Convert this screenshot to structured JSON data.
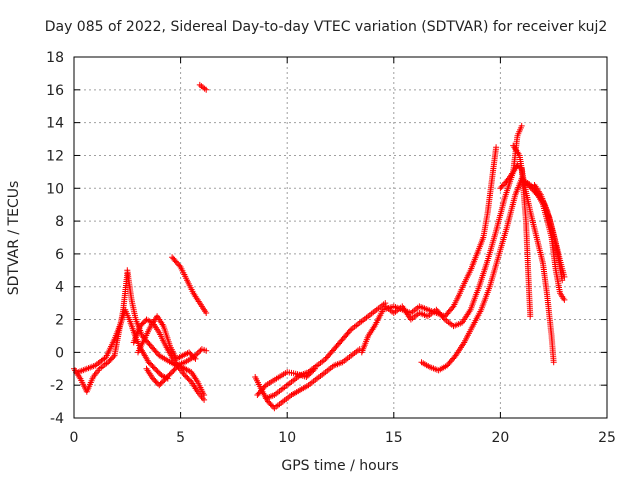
{
  "chart_data": {
    "type": "scatter",
    "title": "Day 085 of 2022, Sidereal Day-to-day VTEC variation (SDTVAR) for receiver kuj2",
    "xlabel": "GPS time / hours",
    "ylabel": "SDTVAR / TECUs",
    "xlim": [
      0,
      25
    ],
    "ylim": [
      -4,
      18
    ],
    "xticks": [
      0,
      5,
      10,
      15,
      20,
      25
    ],
    "yticks": [
      -4,
      -2,
      0,
      2,
      4,
      6,
      8,
      10,
      12,
      14,
      16,
      18
    ],
    "grid": true,
    "marker": "+",
    "series": [
      {
        "name": "SDTVAR",
        "color": "#ff0000",
        "tracks": [
          [
            [
              0.0,
              -1.0
            ],
            [
              0.3,
              -1.6
            ],
            [
              0.6,
              -2.4
            ],
            [
              0.9,
              -1.5
            ],
            [
              1.2,
              -1.0
            ],
            [
              1.6,
              -0.6
            ],
            [
              1.9,
              -0.2
            ],
            [
              2.1,
              1.2
            ],
            [
              2.3,
              2.5
            ],
            [
              2.5,
              4.8
            ]
          ],
          [
            [
              0.2,
              -1.2
            ],
            [
              0.6,
              -1.0
            ],
            [
              1.0,
              -0.8
            ],
            [
              1.5,
              -0.3
            ],
            [
              1.9,
              0.8
            ],
            [
              2.2,
              1.8
            ],
            [
              2.4,
              2.6
            ],
            [
              2.6,
              2.0
            ],
            [
              2.9,
              0.9
            ],
            [
              3.1,
              0.3
            ],
            [
              3.5,
              -0.6
            ],
            [
              3.8,
              -1.0
            ],
            [
              4.1,
              -1.4
            ],
            [
              4.4,
              -1.6
            ]
          ],
          [
            [
              2.5,
              5.0
            ],
            [
              2.7,
              3.2
            ],
            [
              2.9,
              2.0
            ],
            [
              3.2,
              1.0
            ],
            [
              3.6,
              0.4
            ],
            [
              4.0,
              -0.2
            ],
            [
              4.4,
              -0.5
            ],
            [
              4.8,
              -0.8
            ],
            [
              5.2,
              -0.6
            ],
            [
              5.6,
              -0.3
            ],
            [
              6.0,
              0.2
            ],
            [
              6.2,
              0.1
            ]
          ],
          [
            [
              2.8,
              0.6
            ],
            [
              3.1,
              1.6
            ],
            [
              3.4,
              2.0
            ],
            [
              3.7,
              1.8
            ],
            [
              4.0,
              1.2
            ],
            [
              4.3,
              0.4
            ],
            [
              4.6,
              -0.3
            ],
            [
              4.9,
              -0.9
            ],
            [
              5.2,
              -1.4
            ],
            [
              5.5,
              -1.8
            ],
            [
              5.8,
              -2.4
            ],
            [
              6.1,
              -2.9
            ]
          ],
          [
            [
              3.4,
              -1.0
            ],
            [
              3.7,
              -1.6
            ],
            [
              4.0,
              -2.0
            ],
            [
              4.3,
              -1.6
            ],
            [
              4.6,
              -1.2
            ],
            [
              4.9,
              -0.8
            ],
            [
              5.2,
              -1.0
            ],
            [
              5.5,
              -1.2
            ],
            [
              5.8,
              -1.8
            ],
            [
              6.1,
              -2.6
            ]
          ],
          [
            [
              3.0,
              0.0
            ],
            [
              3.3,
              0.8
            ],
            [
              3.6,
              1.6
            ],
            [
              3.9,
              2.2
            ],
            [
              4.2,
              1.6
            ],
            [
              4.5,
              0.4
            ],
            [
              4.8,
              -0.4
            ],
            [
              5.1,
              -0.2
            ],
            [
              5.4,
              0.0
            ],
            [
              5.7,
              -0.4
            ]
          ],
          [
            [
              4.6,
              5.8
            ],
            [
              5.0,
              5.2
            ],
            [
              5.3,
              4.4
            ],
            [
              5.6,
              3.6
            ],
            [
              5.9,
              3.0
            ],
            [
              6.2,
              2.4
            ]
          ],
          [
            [
              5.9,
              16.3
            ],
            [
              6.2,
              16.0
            ]
          ],
          [
            [
              8.5,
              -1.5
            ],
            [
              8.8,
              -2.3
            ],
            [
              9.1,
              -3.0
            ],
            [
              9.4,
              -3.4
            ],
            [
              9.8,
              -3.0
            ],
            [
              10.2,
              -2.6
            ],
            [
              10.6,
              -2.3
            ],
            [
              11.0,
              -2.0
            ],
            [
              11.4,
              -1.6
            ],
            [
              11.8,
              -1.2
            ],
            [
              12.2,
              -0.8
            ],
            [
              12.6,
              -0.6
            ],
            [
              13.0,
              -0.2
            ],
            [
              13.4,
              0.2
            ]
          ],
          [
            [
              9.0,
              -2.8
            ],
            [
              9.4,
              -2.6
            ],
            [
              9.8,
              -2.2
            ],
            [
              10.2,
              -1.8
            ],
            [
              10.6,
              -1.4
            ],
            [
              11.0,
              -1.2
            ],
            [
              11.4,
              -0.8
            ],
            [
              11.8,
              -0.4
            ],
            [
              12.2,
              0.2
            ],
            [
              12.6,
              0.8
            ],
            [
              13.0,
              1.4
            ],
            [
              13.4,
              1.8
            ],
            [
              13.8,
              2.2
            ],
            [
              14.2,
              2.6
            ],
            [
              14.6,
              3.0
            ]
          ],
          [
            [
              8.6,
              -2.6
            ],
            [
              9.0,
              -2.0
            ],
            [
              9.5,
              -1.6
            ],
            [
              10.0,
              -1.2
            ],
            [
              10.4,
              -1.3
            ],
            [
              10.9,
              -1.5
            ],
            [
              11.3,
              -1.0
            ]
          ],
          [
            [
              13.5,
              0.0
            ],
            [
              13.8,
              1.0
            ],
            [
              14.1,
              1.6
            ],
            [
              14.5,
              2.6
            ],
            [
              15.0,
              2.8
            ],
            [
              15.4,
              2.6
            ],
            [
              15.8,
              2.4
            ],
            [
              16.2,
              2.8
            ],
            [
              16.6,
              2.6
            ],
            [
              17.0,
              2.4
            ],
            [
              17.4,
              2.2
            ],
            [
              17.8,
              2.8
            ],
            [
              18.1,
              3.6
            ],
            [
              18.3,
              4.2
            ],
            [
              18.6,
              5.0
            ],
            [
              18.9,
              6.0
            ],
            [
              19.2,
              7.0
            ],
            [
              19.4,
              8.5
            ],
            [
              19.6,
              10.5
            ],
            [
              19.8,
              12.5
            ]
          ],
          [
            [
              14.6,
              2.8
            ],
            [
              15.0,
              2.4
            ],
            [
              15.4,
              2.8
            ],
            [
              15.8,
              2.0
            ],
            [
              16.2,
              2.4
            ],
            [
              16.6,
              2.2
            ],
            [
              17.0,
              2.6
            ],
            [
              17.4,
              2.0
            ],
            [
              17.8,
              1.6
            ],
            [
              18.2,
              1.8
            ],
            [
              18.6,
              2.6
            ],
            [
              19.0,
              4.0
            ],
            [
              19.4,
              5.6
            ],
            [
              19.8,
              7.4
            ],
            [
              20.2,
              9.4
            ],
            [
              20.6,
              11.0
            ],
            [
              20.8,
              13.2
            ],
            [
              21.0,
              13.8
            ]
          ],
          [
            [
              16.3,
              -0.6
            ],
            [
              16.7,
              -0.9
            ],
            [
              17.1,
              -1.1
            ],
            [
              17.5,
              -0.8
            ],
            [
              17.9,
              -0.2
            ],
            [
              18.3,
              0.6
            ],
            [
              18.7,
              1.6
            ],
            [
              19.1,
              2.6
            ],
            [
              19.5,
              4.0
            ],
            [
              19.9,
              5.8
            ],
            [
              20.3,
              7.6
            ],
            [
              20.7,
              9.6
            ],
            [
              21.0,
              10.6
            ],
            [
              21.3,
              10.2
            ],
            [
              21.6,
              9.8
            ],
            [
              22.0,
              9.2
            ],
            [
              22.3,
              8.2
            ],
            [
              22.6,
              6.6
            ],
            [
              22.9,
              4.4
            ]
          ],
          [
            [
              20.0,
              10.0
            ],
            [
              20.4,
              10.6
            ],
            [
              20.8,
              11.4
            ],
            [
              21.0,
              11.2
            ],
            [
              21.2,
              8.0
            ],
            [
              21.3,
              5.0
            ],
            [
              21.4,
              2.2
            ]
          ],
          [
            [
              20.6,
              12.6
            ],
            [
              20.9,
              12.0
            ],
            [
              21.1,
              10.4
            ],
            [
              21.4,
              8.6
            ],
            [
              21.7,
              7.0
            ],
            [
              22.0,
              5.4
            ],
            [
              22.2,
              3.4
            ],
            [
              22.4,
              1.0
            ],
            [
              22.5,
              -0.6
            ]
          ],
          [
            [
              21.2,
              10.4
            ],
            [
              21.6,
              10.0
            ],
            [
              22.0,
              9.0
            ],
            [
              22.4,
              7.0
            ],
            [
              22.6,
              5.0
            ],
            [
              22.8,
              3.6
            ],
            [
              23.0,
              3.2
            ]
          ],
          [
            [
              21.6,
              10.2
            ],
            [
              21.9,
              9.6
            ],
            [
              22.2,
              8.6
            ],
            [
              22.5,
              7.2
            ],
            [
              22.8,
              5.6
            ],
            [
              23.0,
              4.6
            ]
          ]
        ]
      }
    ]
  }
}
